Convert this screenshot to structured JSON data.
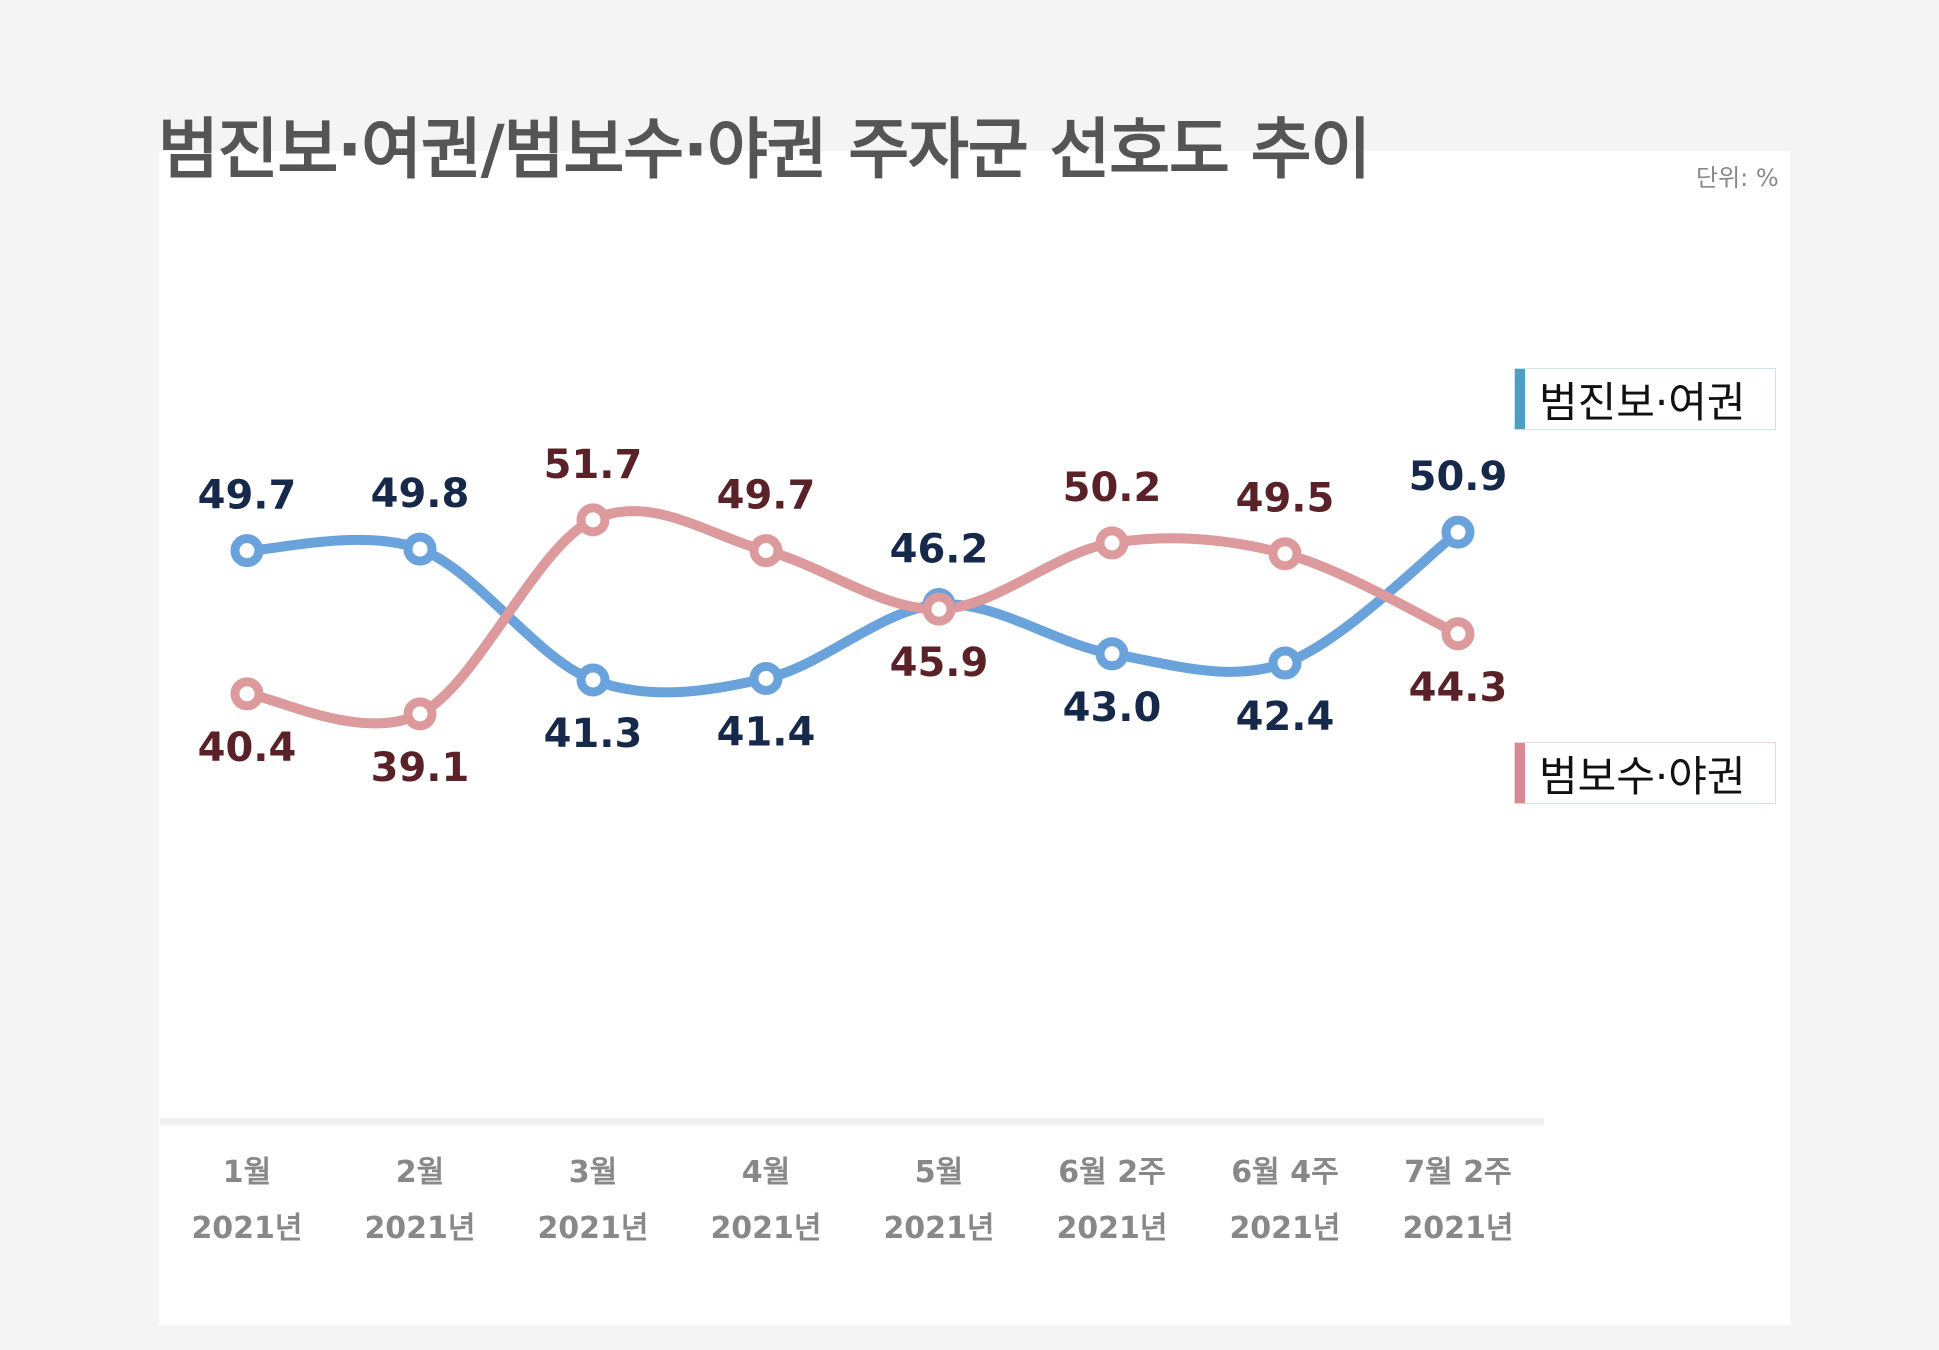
{
  "title": "범진보·여권/범보수·야권 주자군 선호도 추이",
  "unit": "단위: %",
  "colors": {
    "progressive_line": "#6aa2dc",
    "progressive_label": "#17294a",
    "progressive_legend_bar": "#4f9fc2",
    "conservative_line": "#dc9a9c",
    "conservative_label": "#5a2228",
    "conservative_legend_bar": "#d88a92"
  },
  "chart_data": {
    "type": "line",
    "title": "범진보·여권/범보수·야권 주자군 선호도 추이",
    "categories": [
      {
        "month": "1월",
        "year": "2021년"
      },
      {
        "month": "2월",
        "year": "2021년"
      },
      {
        "month": "3월",
        "year": "2021년"
      },
      {
        "month": "4월",
        "year": "2021년"
      },
      {
        "month": "5월",
        "year": "2021년"
      },
      {
        "month": "6월 2주",
        "year": "2021년"
      },
      {
        "month": "6월 4주",
        "year": "2021년"
      },
      {
        "month": "7월 2주",
        "year": "2021년"
      }
    ],
    "series": [
      {
        "key": "progressive",
        "name": "범진보·여권",
        "values": [
          49.7,
          49.8,
          41.3,
          41.4,
          46.2,
          43.0,
          42.4,
          50.9
        ]
      },
      {
        "key": "conservative",
        "name": "범보수·야권",
        "values": [
          40.4,
          39.1,
          51.7,
          49.7,
          45.9,
          50.2,
          49.5,
          44.3
        ]
      }
    ],
    "label_placement": {
      "progressive": [
        "above",
        "above",
        "below",
        "below",
        "above",
        "below",
        "below",
        "above"
      ],
      "conservative": [
        "below",
        "below",
        "above",
        "above",
        "below",
        "above",
        "above",
        "below"
      ]
    },
    "xlabel": "",
    "ylabel": "",
    "ylim": [
      20,
      70
    ],
    "legend_position": "right"
  }
}
